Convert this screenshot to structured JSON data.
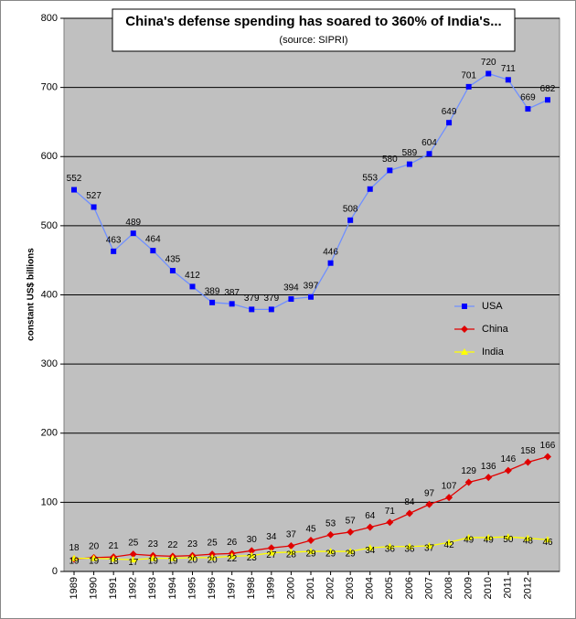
{
  "chart_data": {
    "type": "line",
    "title": "China's defense spending has soared to 360% of India's...",
    "subtitle": "(source: SIPRI)",
    "y_label": "constant US$ billions",
    "categories": [
      "1989",
      "1990",
      "1991",
      "1992",
      "1993",
      "1994",
      "1995",
      "1996",
      "1997",
      "1998",
      "1999",
      "2000",
      "2001",
      "2002",
      "2003",
      "2004",
      "2005",
      "2006",
      "2007",
      "2008",
      "2009",
      "2010",
      "2011",
      "2012",
      null
    ],
    "series": [
      {
        "name": "USA",
        "color": "#0000ff",
        "line_color": "#6f8fff",
        "marker": "square",
        "values": [
          552,
          527,
          463,
          489,
          464,
          435,
          412,
          389,
          387,
          379,
          379,
          394,
          397,
          446,
          508,
          553,
          580,
          589,
          604,
          649,
          701,
          720,
          711,
          669,
          682
        ]
      },
      {
        "name": "China",
        "color": "#e00000",
        "line_color": "#e00000",
        "marker": "diamond",
        "values": [
          18,
          20,
          21,
          25,
          23,
          22,
          23,
          25,
          26,
          30,
          34,
          37,
          45,
          53,
          57,
          64,
          71,
          84,
          97,
          107,
          129,
          136,
          146,
          158,
          166
        ]
      },
      {
        "name": "India",
        "color": "#ffff00",
        "line_color": "#ffff00",
        "marker": "triangle",
        "values": [
          19,
          19,
          18,
          17,
          19,
          19,
          20,
          20,
          22,
          23,
          27,
          28,
          29,
          29,
          29,
          34,
          36,
          36,
          37,
          42,
          49,
          49,
          50,
          48,
          46
        ]
      }
    ],
    "ylim": [
      0,
      800
    ],
    "yticks": [
      0,
      100,
      200,
      300,
      400,
      500,
      600,
      700,
      800
    ],
    "grid": true
  }
}
